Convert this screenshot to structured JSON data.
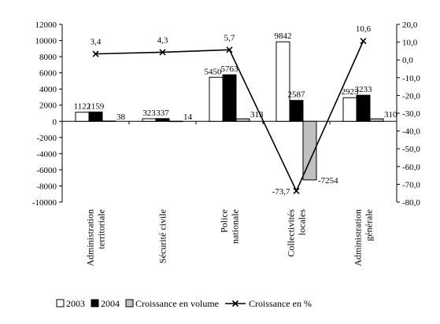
{
  "chart_data": {
    "type": "bar",
    "categories": [
      [
        "Administration",
        "territoriale"
      ],
      [
        "Sécurité civile"
      ],
      [
        "Police",
        "nationale"
      ],
      [
        "Collectivités",
        "locales"
      ],
      [
        "Administration",
        "générale"
      ]
    ],
    "series": [
      {
        "name": "2003",
        "type": "bar",
        "axis": "left",
        "color": "#ffffff",
        "values": [
          1122,
          323,
          5450,
          9842,
          2923
        ],
        "labels": [
          "1122",
          "323",
          "5450",
          "9842",
          "2923"
        ]
      },
      {
        "name": "2004",
        "type": "bar",
        "axis": "left",
        "color": "#000000",
        "values": [
          1159,
          337,
          5763,
          2587,
          3233
        ],
        "labels": [
          "1159",
          "337",
          "5763",
          "2587",
          "3233"
        ]
      },
      {
        "name": "Croissance en volume",
        "type": "bar",
        "axis": "left",
        "color": "#c0c0c0",
        "values": [
          38,
          14,
          313,
          -7254,
          310
        ],
        "labels": [
          "38",
          "14",
          "313",
          "-7254",
          "310"
        ]
      },
      {
        "name": "Croissance en %",
        "type": "line",
        "axis": "right",
        "color": "#000000",
        "values": [
          3.4,
          4.3,
          5.7,
          -73.7,
          10.6
        ],
        "labels": [
          "3,4",
          "4,3",
          "5,7",
          "-73,7",
          "10,6"
        ]
      }
    ],
    "yleft": {
      "lim": [
        -10000,
        12000
      ],
      "ticks": [
        12000,
        10000,
        8000,
        6000,
        4000,
        2000,
        0,
        -2000,
        -4000,
        -6000,
        -8000,
        -10000
      ],
      "tick_labels": [
        "12000",
        "10000",
        "8000",
        "6000",
        "4000",
        "2000",
        "0",
        "-2000",
        "-4000",
        "-6000",
        "-8000",
        "-10000"
      ]
    },
    "yright": {
      "lim": [
        -80,
        20
      ],
      "ticks": [
        20,
        10,
        0,
        -10,
        -20,
        -30,
        -40,
        -50,
        -60,
        -70,
        -80
      ],
      "tick_labels": [
        "20,0",
        "10,0",
        "0,0",
        "-10,0",
        "-20,0",
        "-30,0",
        "-40,0",
        "-50,0",
        "-60,0",
        "-70,0",
        "-80,0"
      ]
    },
    "grid": false,
    "legend_position": "bottom",
    "marker": "x"
  }
}
